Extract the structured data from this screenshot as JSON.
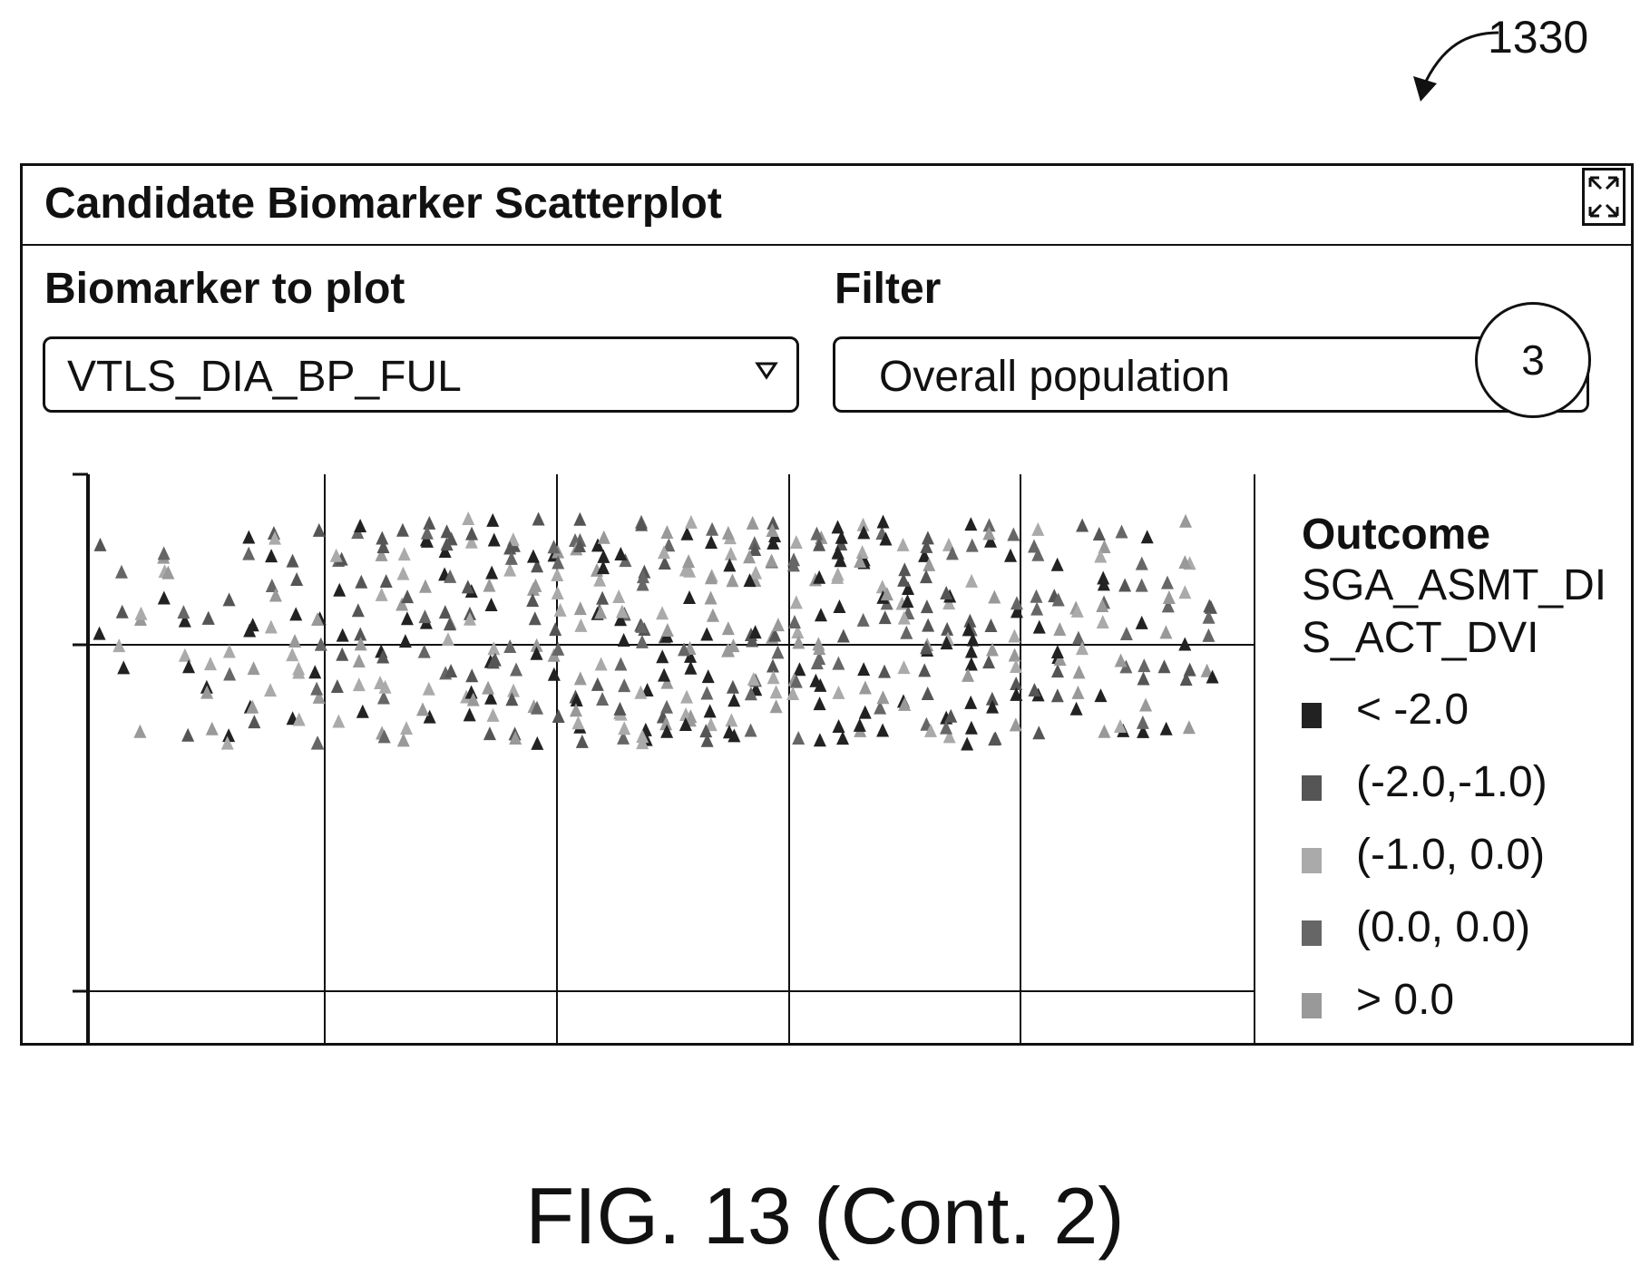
{
  "figure_ref": "1330",
  "panel": {
    "title": "Candidate Biomarker Scatterplot",
    "expand_icon": "expand-arrows-icon"
  },
  "controls": {
    "biomarker_label": "Biomarker to plot",
    "biomarker_value": "VTLS_DIA_BP_FUL",
    "filter_label": "Filter",
    "filter_value": "Overall population",
    "step_badge": "3"
  },
  "chart_data": {
    "type": "scatter",
    "marker": "triangle",
    "grid": true,
    "legend_position": "right",
    "legend_title": "Outcome",
    "legend_subtitle": "SGA_ASMT_DIS_ACT_DVI",
    "legend": [
      {
        "label": "< -2.0",
        "color": "#222222"
      },
      {
        "label": "(-2.0,-1.0)",
        "color": "#555555"
      },
      {
        "label": "(-1.0, 0.0)",
        "color": "#aaaaaa"
      },
      {
        "label": "(0.0, 0.0)",
        "color": "#666666"
      },
      {
        "label": "> 0.0",
        "color": "#999999"
      }
    ]
  },
  "caption": "FIG. 13 (Cont. 2)"
}
